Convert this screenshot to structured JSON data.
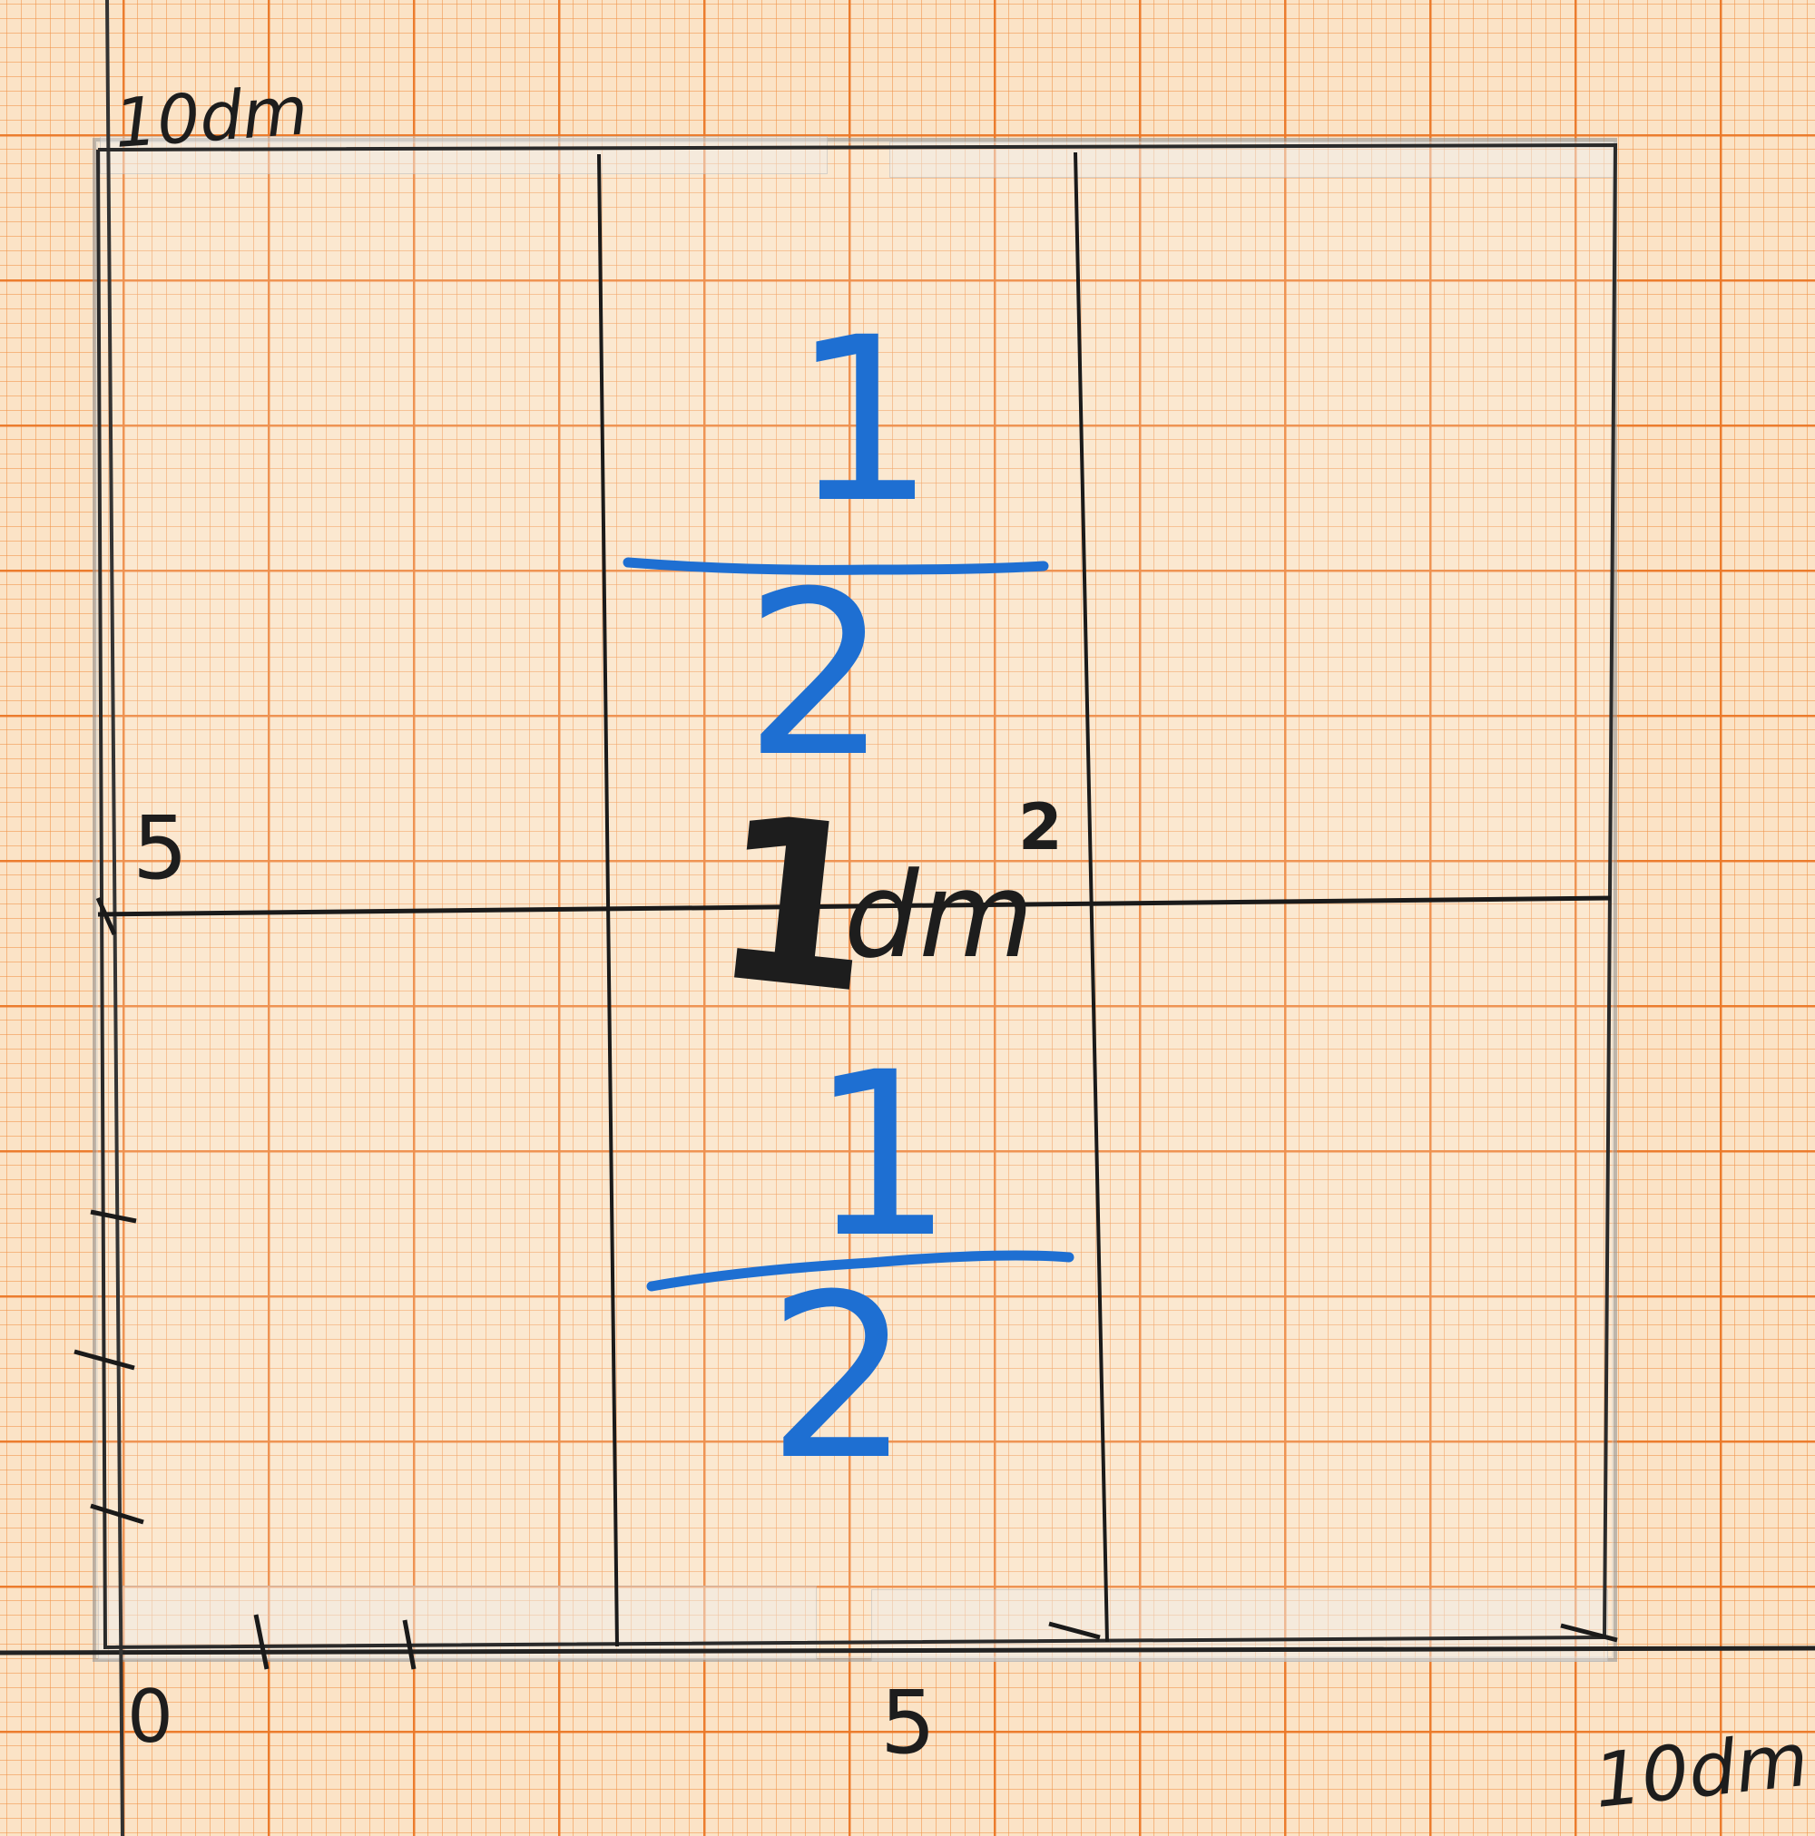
{
  "top_label": "10dm",
  "right_label": "10dm",
  "x_axis_ticks": [
    "0",
    "5"
  ],
  "y_axis_tick": "5",
  "center_label": {
    "number": "1",
    "unit": "dm",
    "exponent": "2"
  },
  "upper_fraction": {
    "numerator": "1",
    "denominator": "2"
  },
  "lower_fraction": {
    "numerator": "1",
    "denominator": "2"
  },
  "colors": {
    "paper": "#fbe3c6",
    "grid_orange": "#eb7828",
    "pencil_black": "#1d1d1d",
    "marker_blue": "#1e6fd2"
  }
}
